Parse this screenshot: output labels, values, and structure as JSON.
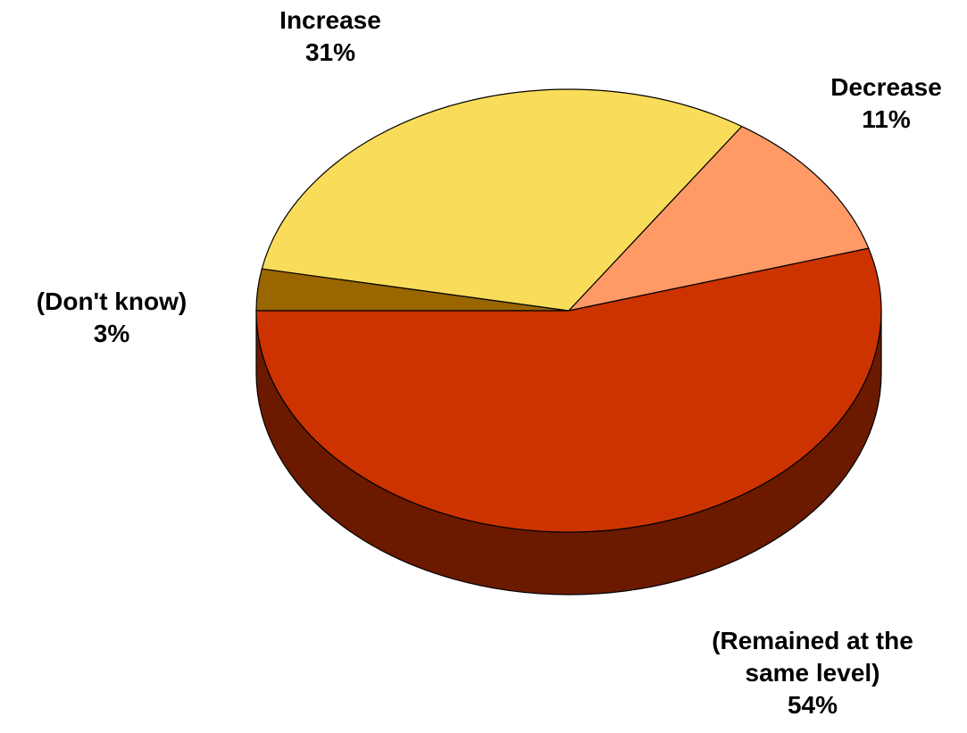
{
  "chart_data": {
    "type": "pie",
    "three_d": true,
    "title": "",
    "start_angle_deg": 180,
    "direction": "clockwise",
    "slices": [
      {
        "label": "(Don't know)",
        "value": 3,
        "value_label": "3%",
        "color": "#996600",
        "side_color": "#5f3f00"
      },
      {
        "label": "Increase",
        "value": 31,
        "value_label": "31%",
        "color": "#F9DC59",
        "side_color": "#a08c38"
      },
      {
        "label": "Decrease",
        "value": 11,
        "value_label": "11%",
        "color": "#FF9966",
        "side_color": "#a35f3e"
      },
      {
        "label": "(Remained at the same level)",
        "value": 54,
        "value_label": "54%",
        "color": "#CC3300",
        "side_color": "#6B1A00"
      }
    ],
    "legend": "none"
  }
}
